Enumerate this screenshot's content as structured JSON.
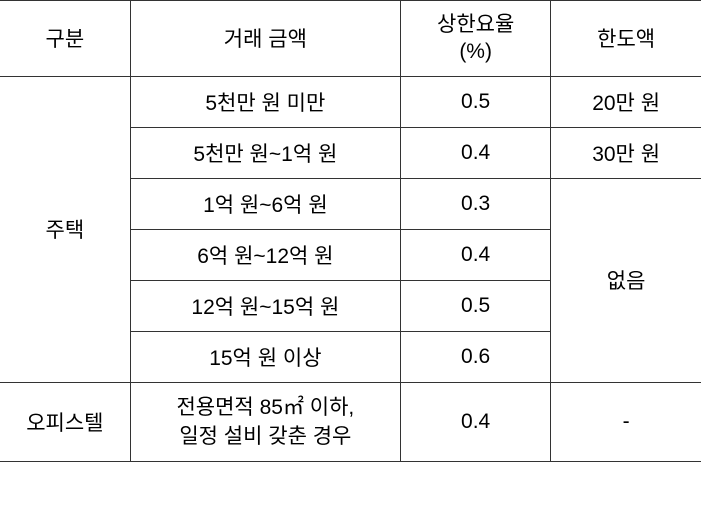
{
  "headers": {
    "category": "구분",
    "amount": "거래 금액",
    "rate": "상한요율\n(%)",
    "limit": "한도액"
  },
  "categories": {
    "housing": "주택",
    "officetel": "오피스텔"
  },
  "housing_rows": [
    {
      "amount": "5천만 원 미만",
      "rate": "0.5",
      "limit": "20만 원"
    },
    {
      "amount": "5천만 원~1억 원",
      "rate": "0.4",
      "limit": "30만 원"
    },
    {
      "amount": "1억 원~6억 원",
      "rate": "0.3"
    },
    {
      "amount": "6억 원~12억 원",
      "rate": "0.4"
    },
    {
      "amount": "12억 원~15억 원",
      "rate": "0.5"
    },
    {
      "amount": "15억 원 이상",
      "rate": "0.6"
    }
  ],
  "housing_no_limit": "없음",
  "officetel_row": {
    "amount": "전용면적 85㎡ 이하,\n일정 설비 갖춘 경우",
    "rate": "0.4",
    "limit": "-"
  },
  "styling": {
    "border_color": "#333333",
    "text_color": "#000000",
    "background_color": "#ffffff",
    "font_size": 21,
    "col_widths": {
      "category": 130,
      "amount": 270,
      "rate": 150,
      "limit": 150
    }
  }
}
